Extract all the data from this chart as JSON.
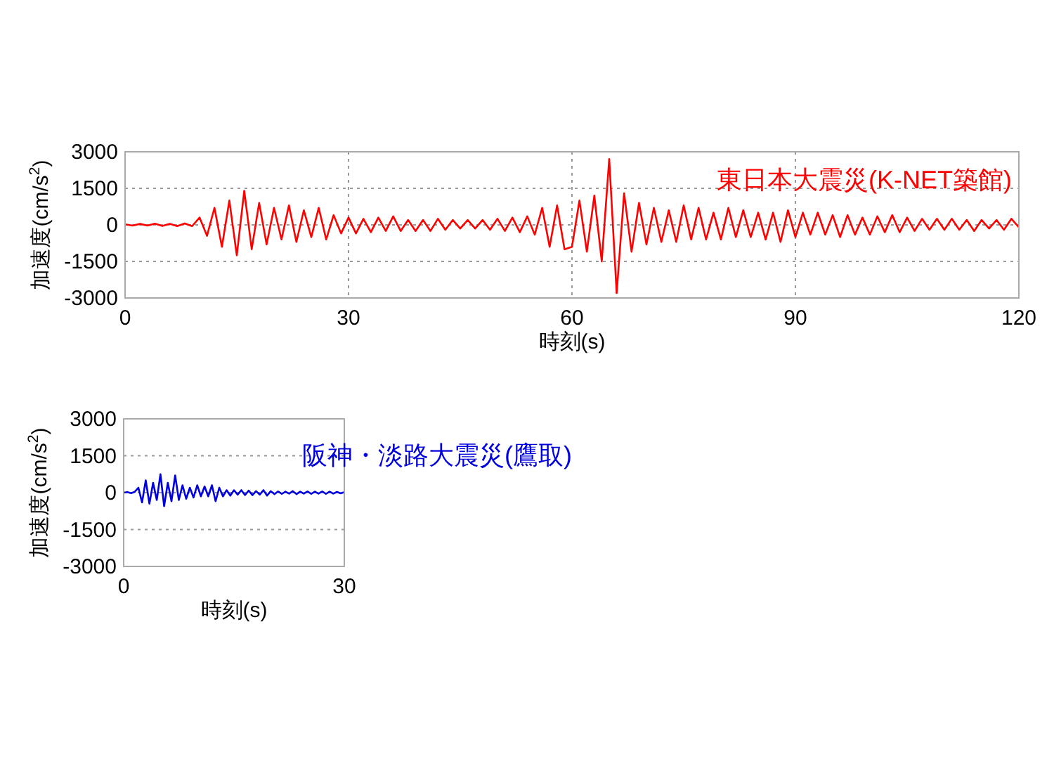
{
  "chart_data": [
    {
      "type": "line",
      "xlabel": "時刻(s)",
      "ylabel": "加速度(cm/s$^{2}$)",
      "xlim": [
        0,
        120
      ],
      "ylim": [
        -3000,
        3000
      ],
      "xticks": [
        0,
        30,
        60,
        90,
        120
      ],
      "yticks": [
        -3000,
        -1500,
        0,
        1500,
        3000
      ],
      "grid": true,
      "series": [
        {
          "name": "東日本大震災(K-NET築館)",
          "color": "#ff0000",
          "x": [
            0,
            1,
            2,
            3,
            4,
            5,
            6,
            7,
            8,
            9,
            10,
            11,
            12,
            13,
            14,
            15,
            16,
            17,
            18,
            19,
            20,
            21,
            22,
            23,
            24,
            25,
            26,
            27,
            28,
            29,
            30,
            31,
            32,
            33,
            34,
            35,
            36,
            37,
            38,
            39,
            40,
            41,
            42,
            43,
            44,
            45,
            46,
            47,
            48,
            49,
            50,
            51,
            52,
            53,
            54,
            55,
            56,
            57,
            58,
            59,
            60,
            61,
            62,
            63,
            64,
            65,
            66,
            67,
            68,
            69,
            70,
            71,
            72,
            73,
            74,
            75,
            76,
            77,
            78,
            79,
            80,
            81,
            82,
            83,
            84,
            85,
            86,
            87,
            88,
            89,
            90,
            91,
            92,
            93,
            94,
            95,
            96,
            97,
            98,
            99,
            100,
            101,
            102,
            103,
            104,
            105,
            106,
            107,
            108,
            109,
            110,
            111,
            112,
            113,
            114,
            115,
            116,
            117,
            118,
            119,
            120
          ],
          "values": [
            20,
            -30,
            40,
            -30,
            50,
            -40,
            40,
            -50,
            60,
            -50,
            300,
            -450,
            700,
            -900,
            1000,
            -1250,
            1400,
            -1000,
            900,
            -800,
            700,
            -600,
            800,
            -700,
            600,
            -500,
            700,
            -600,
            400,
            -350,
            300,
            -350,
            250,
            -300,
            300,
            -250,
            350,
            -250,
            200,
            -250,
            200,
            -250,
            250,
            -200,
            200,
            -150,
            200,
            -150,
            200,
            -200,
            250,
            -250,
            300,
            -300,
            350,
            -400,
            700,
            -900,
            800,
            -1000,
            -900,
            1000,
            -1100,
            1200,
            -1500,
            2700,
            -2800,
            1300,
            -1100,
            900,
            -800,
            700,
            -700,
            600,
            -700,
            800,
            -600,
            700,
            -600,
            500,
            -600,
            700,
            -500,
            600,
            -500,
            500,
            -600,
            500,
            -700,
            600,
            -500,
            500,
            -400,
            500,
            -400,
            400,
            -500,
            400,
            -400,
            300,
            -400,
            350,
            -300,
            400,
            -300,
            300,
            -250,
            250,
            -200,
            250,
            -200,
            250,
            -200,
            200,
            -250,
            200,
            -150,
            200,
            -200,
            250,
            -100
          ]
        }
      ]
    },
    {
      "type": "line",
      "xlabel": "時刻(s)",
      "ylabel": "加速度(cm/s$^{2}$)",
      "xlim": [
        0,
        30
      ],
      "ylim": [
        -3000,
        3000
      ],
      "xticks": [
        0,
        30
      ],
      "yticks": [
        -3000,
        -1500,
        0,
        1500,
        3000
      ],
      "grid": true,
      "series": [
        {
          "name": "阪神・淡路大震災(鷹取)",
          "color": "#0000dd",
          "x": [
            0,
            0.5,
            1,
            1.5,
            2,
            2.5,
            3,
            3.5,
            4,
            4.5,
            5,
            5.5,
            6,
            6.5,
            7,
            7.5,
            8,
            8.5,
            9,
            9.5,
            10,
            10.5,
            11,
            11.5,
            12,
            12.5,
            13,
            13.5,
            14,
            14.5,
            15,
            15.5,
            16,
            16.5,
            17,
            17.5,
            18,
            18.5,
            19,
            19.5,
            20,
            20.5,
            21,
            21.5,
            22,
            22.5,
            23,
            23.5,
            24,
            24.5,
            25,
            25.5,
            26,
            26.5,
            27,
            27.5,
            28,
            28.5,
            29,
            29.5,
            30
          ],
          "values": [
            0,
            20,
            -20,
            30,
            200,
            -400,
            500,
            -450,
            400,
            -300,
            750,
            -550,
            400,
            -350,
            700,
            -300,
            300,
            -250,
            200,
            -200,
            300,
            -150,
            250,
            -150,
            300,
            -350,
            200,
            -150,
            100,
            -120,
            100,
            -80,
            100,
            -100,
            80,
            -100,
            60,
            -80,
            100,
            -120,
            60,
            -60,
            50,
            -50,
            40,
            -40,
            60,
            -60,
            40,
            -40,
            50,
            -50,
            40,
            -40,
            50,
            -50,
            40,
            -40,
            30,
            -30,
            20
          ]
        }
      ]
    }
  ]
}
